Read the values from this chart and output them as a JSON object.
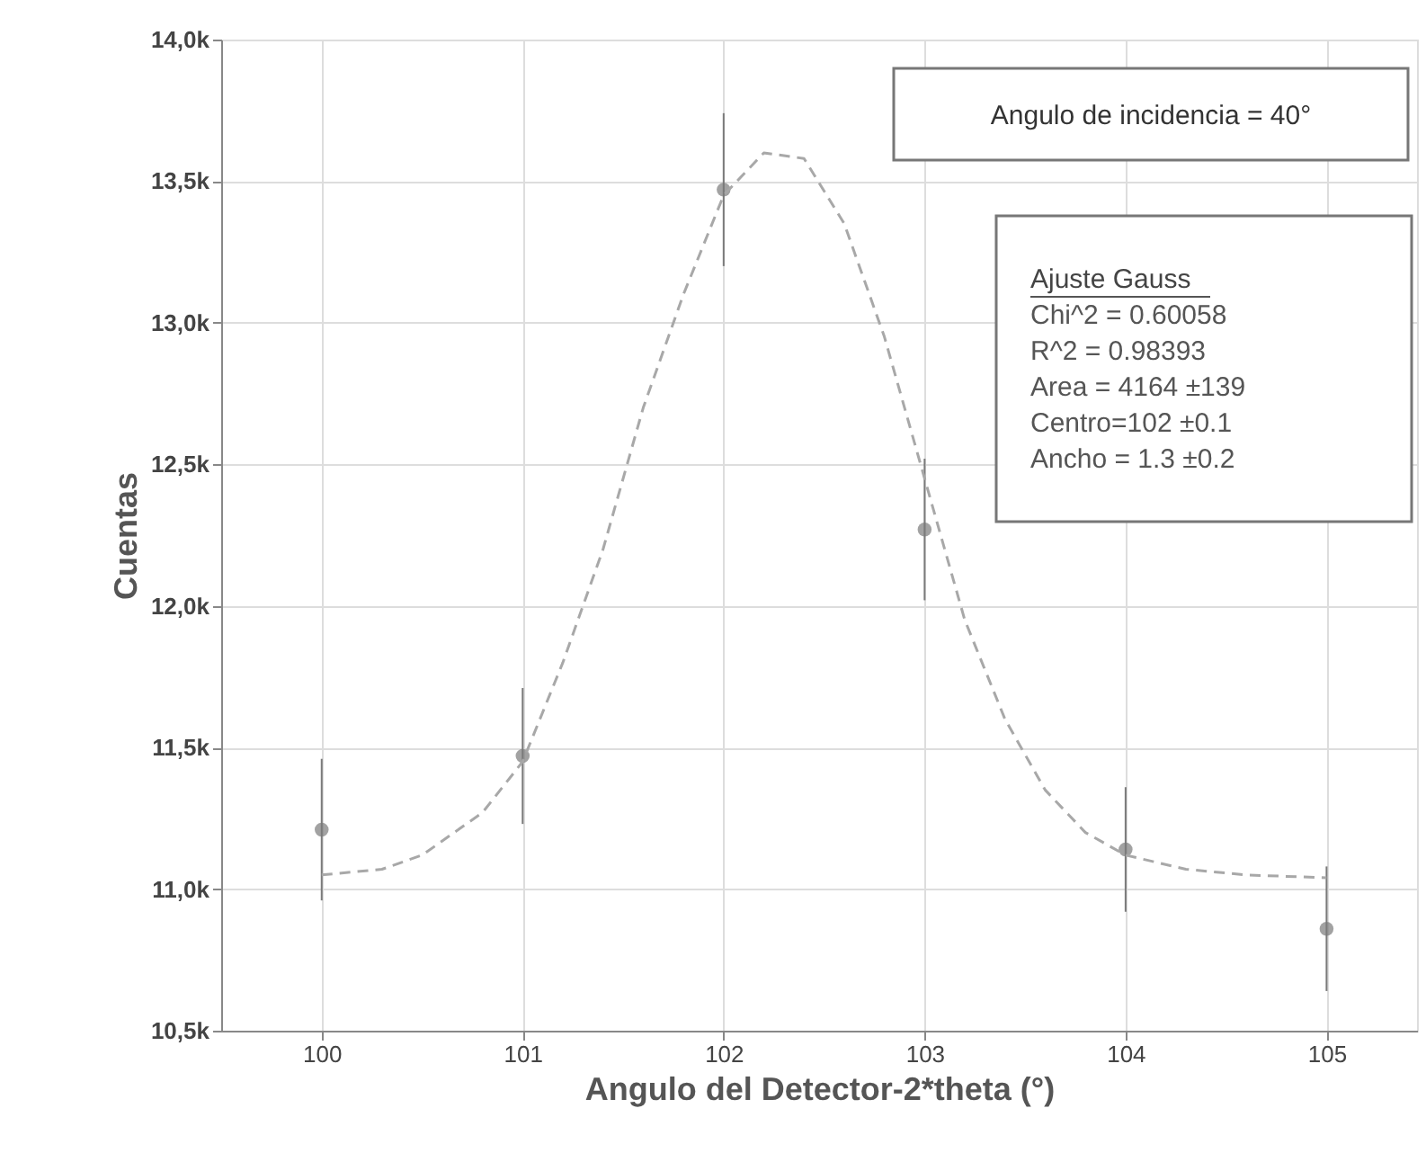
{
  "chart_data": {
    "type": "scatter",
    "xlabel": "Angulo del Detector-2*theta (°)",
    "ylabel": "Cuentas",
    "xlim": [
      99.5,
      105.45
    ],
    "xticks": [
      100,
      101,
      102,
      103,
      104,
      105
    ],
    "ylim": [
      10.5,
      14.0
    ],
    "yticks": [
      {
        "value": 10.5,
        "label": "10,5k"
      },
      {
        "value": 11.0,
        "label": "11,0k"
      },
      {
        "value": 11.5,
        "label": "11,5k"
      },
      {
        "value": 12.0,
        "label": "12,0k"
      },
      {
        "value": 12.5,
        "label": "12,5k"
      },
      {
        "value": 13.0,
        "label": "13,0k"
      },
      {
        "value": 13.5,
        "label": "13,5k"
      },
      {
        "value": 14.0,
        "label": "14,0k"
      }
    ],
    "grid": true,
    "marker": "circle",
    "series": [
      {
        "type": "scatter",
        "color": "#7a7a7a",
        "x": [
          100,
          101,
          102,
          103,
          104,
          105
        ],
        "values": [
          11.21,
          11.47,
          13.47,
          12.27,
          11.14,
          10.86
        ],
        "errors": [
          0.25,
          0.24,
          0.27,
          0.25,
          0.22,
          0.22
        ]
      },
      {
        "type": "line",
        "marker": "none",
        "color": "#a8a8a8",
        "line_style": "dashed",
        "x": [
          100,
          100.3,
          100.5,
          100.8,
          101,
          101.2,
          101.4,
          101.6,
          101.8,
          102,
          102.2,
          102.4,
          102.6,
          102.8,
          103,
          103.2,
          103.4,
          103.6,
          103.8,
          104,
          104.3,
          104.6,
          105
        ],
        "values": [
          11.05,
          11.07,
          11.12,
          11.27,
          11.45,
          11.8,
          12.2,
          12.7,
          13.1,
          13.45,
          13.6,
          13.58,
          13.35,
          12.95,
          12.45,
          11.95,
          11.6,
          11.35,
          11.2,
          11.12,
          11.07,
          11.05,
          11.04
        ]
      }
    ],
    "annotations": [
      "Angulo de incidencia = 40°",
      "Ajuste Gauss",
      "Chi^2    =  0.60058",
      "R^2       =  0.98393",
      "Area = 4164 ±139",
      "Centro=102 ±0.1",
      "Ancho = 1.3 ±0.2"
    ]
  }
}
